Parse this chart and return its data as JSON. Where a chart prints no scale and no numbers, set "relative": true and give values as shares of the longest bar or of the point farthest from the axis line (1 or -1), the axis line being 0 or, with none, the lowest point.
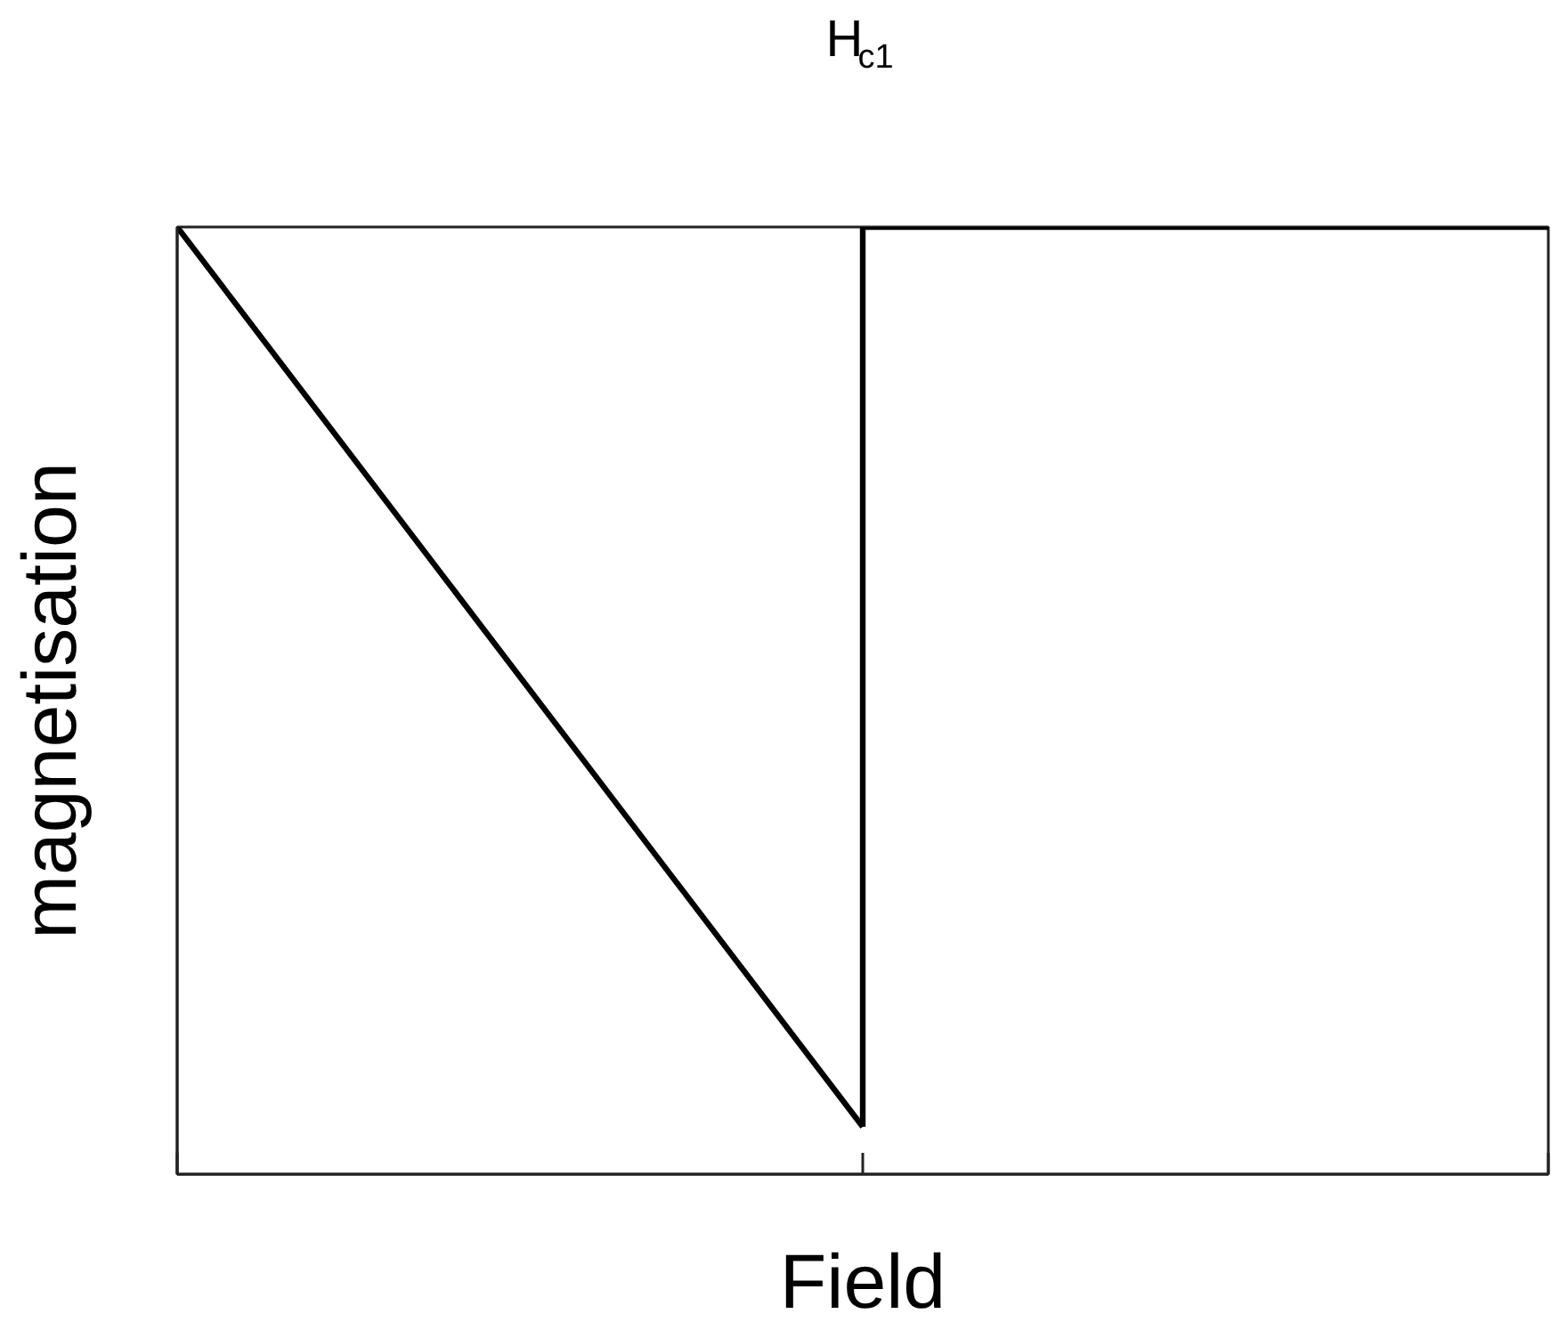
{
  "chart_data": {
    "type": "line",
    "xlabel": "Field",
    "ylabel": "magnetisation",
    "categories": [
      null,
      null,
      null
    ],
    "relative": true,
    "line_style": "solid",
    "annotations": [
      "H$_{c1}$"
    ],
    "series": [
      {
        "color": "#000000",
        "values": [
          1,
          0.05,
          null
        ]
      },
      {
        "type": "step",
        "color": "#000000",
        "values": [
          null,
          0.05,
          1
        ]
      }
    ]
  }
}
